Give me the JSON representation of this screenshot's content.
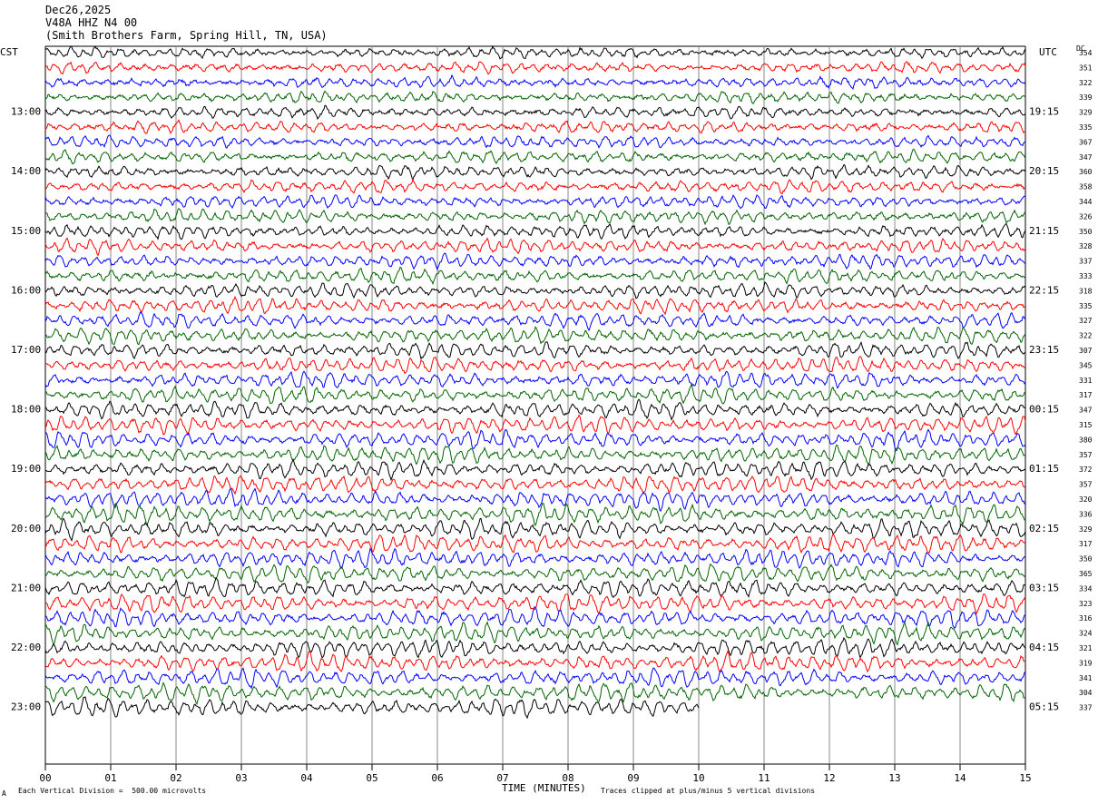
{
  "header": {
    "date": "Dec26,2025",
    "station": "V48A HHZ N4 00",
    "location": "(Smith Brothers Farm, Spring Hill, TN, USA)"
  },
  "left_tz": "CST",
  "right_tz": "UTC",
  "dc_label": "DC",
  "footer": {
    "division_note": "Each Vertical Division =  500.00 microvolts",
    "clip_note": "Traces clipped at plus/minus 5 vertical divisions",
    "corner_mark": "A"
  },
  "chart_data": {
    "type": "line",
    "title": "Dec26,2025",
    "xlabel": "TIME (MINUTES)",
    "ylabel": "",
    "xlim": [
      0,
      15
    ],
    "x_ticks": [
      "00",
      "01",
      "02",
      "03",
      "04",
      "05",
      "06",
      "07",
      "08",
      "09",
      "10",
      "11",
      "12",
      "13",
      "14",
      "15"
    ],
    "trace_colors": [
      "#000000",
      "#ff0000",
      "#0000ff",
      "#006400"
    ],
    "left_hour_labels": [
      "13:00",
      "14:00",
      "15:00",
      "16:00",
      "17:00",
      "18:00",
      "19:00",
      "20:00",
      "21:00",
      "22:00",
      "23:00"
    ],
    "right_hour_labels": [
      "19:15",
      "20:15",
      "21:15",
      "22:15",
      "23:15",
      "00:15",
      "01:15",
      "02:15",
      "03:15",
      "04:15",
      "05:15"
    ],
    "dc_offsets": [
      "354",
      "351",
      "322",
      "339",
      "329",
      "335",
      "367",
      "347",
      "360",
      "358",
      "344",
      "326",
      "350",
      "328",
      "337",
      "333",
      "318",
      "335",
      "327",
      "322",
      "307",
      "345",
      "331",
      "317",
      "347",
      "315",
      "380",
      "357",
      "372",
      "357",
      "320",
      "336",
      "329",
      "317",
      "350",
      "365",
      "334",
      "323",
      "316",
      "324",
      "321",
      "319",
      "341",
      "304",
      "337"
    ],
    "trace_count": 45,
    "last_trace_end_minutes": 10
  }
}
